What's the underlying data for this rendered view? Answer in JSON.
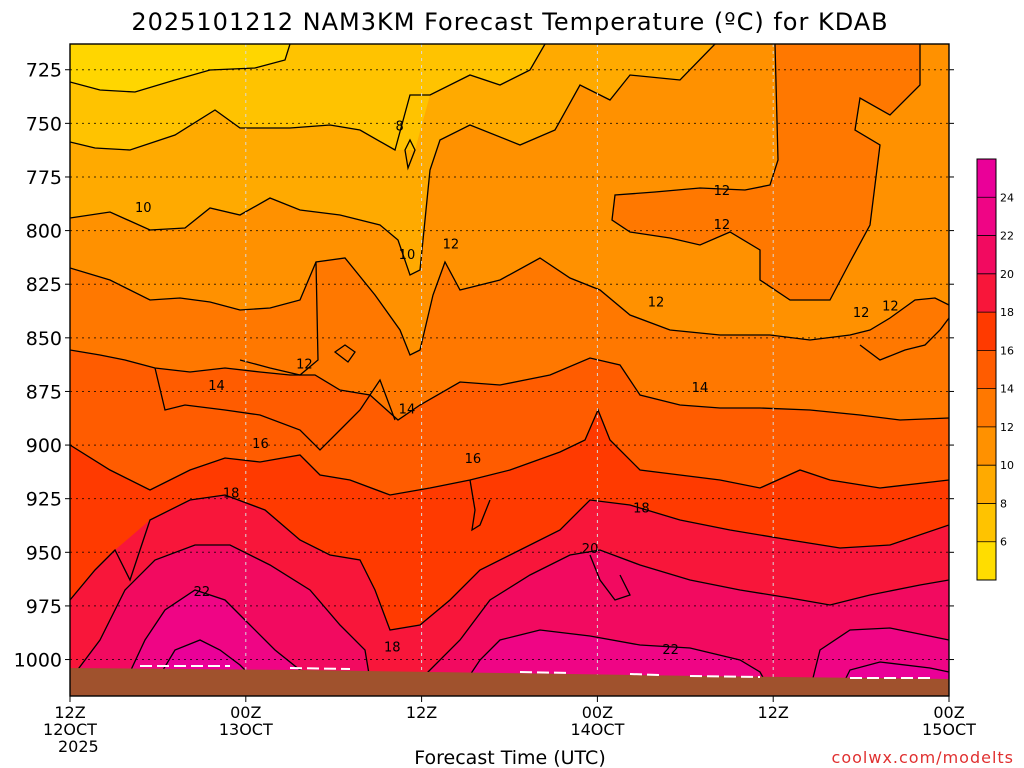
{
  "page": {
    "title": "2025101212 NAM3KM Forecast Temperature (ºC) for KDAB",
    "credit": "coolwx.com/modelts"
  },
  "chart_data": {
    "type": "contour",
    "title": "2025101212 NAM3KM Forecast Temperature (ºC) for KDAB",
    "xlabel": "Forecast Time (UTC)",
    "ylabel": "",
    "y_ticks": [
      "725",
      "750",
      "775",
      "800",
      "825",
      "850",
      "875",
      "900",
      "925",
      "950",
      "975",
      "1000"
    ],
    "x_ticks": [
      {
        "lines": [
          "12Z",
          "12OCT",
          "2025"
        ]
      },
      {
        "lines": [
          "00Z",
          "13OCT"
        ]
      },
      {
        "lines": [
          "12Z"
        ]
      },
      {
        "lines": [
          "00Z",
          "14OCT"
        ]
      },
      {
        "lines": [
          "12Z"
        ]
      },
      {
        "lines": [
          "00Z",
          "15OCT"
        ]
      }
    ],
    "x_hours": [
      0,
      12,
      24,
      36,
      48,
      60
    ],
    "xlim": [
      0,
      60
    ],
    "ylim": [
      713,
      1017
    ],
    "y_reversed": true,
    "grid": true,
    "contour_levels": [
      6,
      8,
      10,
      12,
      14,
      16,
      18,
      20,
      22,
      24
    ],
    "colorbar": {
      "ticks": [
        "6",
        "8",
        "10",
        "12",
        "14",
        "16",
        "18",
        "20",
        "22",
        "24"
      ],
      "colors": [
        "#ffdd00",
        "#ffc300",
        "#ffaa00",
        "#ff9100",
        "#ff7800",
        "#ff5c00",
        "#ff3a00",
        "#f8163a",
        "#f20a60",
        "#ef0585",
        "#ea0098"
      ]
    },
    "contour_labels": [
      {
        "text": "8",
        "hour": 22.5,
        "p": 751
      },
      {
        "text": "10",
        "hour": 5.0,
        "p": 789
      },
      {
        "text": "10",
        "hour": 23.0,
        "p": 811
      },
      {
        "text": "12",
        "hour": 26.0,
        "p": 806
      },
      {
        "text": "12",
        "hour": 16.0,
        "p": 862
      },
      {
        "text": "12",
        "hour": 44.5,
        "p": 781
      },
      {
        "text": "12",
        "hour": 44.5,
        "p": 797
      },
      {
        "text": "12",
        "hour": 40.0,
        "p": 833
      },
      {
        "text": "12",
        "hour": 54.0,
        "p": 838
      },
      {
        "text": "12",
        "hour": 56.0,
        "p": 835
      },
      {
        "text": "14",
        "hour": 10.0,
        "p": 872
      },
      {
        "text": "14",
        "hour": 23.0,
        "p": 883
      },
      {
        "text": "14",
        "hour": 43.0,
        "p": 873
      },
      {
        "text": "16",
        "hour": 13.0,
        "p": 899
      },
      {
        "text": "16",
        "hour": 27.5,
        "p": 906
      },
      {
        "text": "18",
        "hour": 11.0,
        "p": 922
      },
      {
        "text": "18",
        "hour": 39.0,
        "p": 929
      },
      {
        "text": "18",
        "hour": 22.0,
        "p": 994
      },
      {
        "text": "20",
        "hour": 35.5,
        "p": 948
      },
      {
        "text": "22",
        "hour": 9.0,
        "p": 968
      },
      {
        "text": "22",
        "hour": 41.0,
        "p": 995
      }
    ]
  }
}
